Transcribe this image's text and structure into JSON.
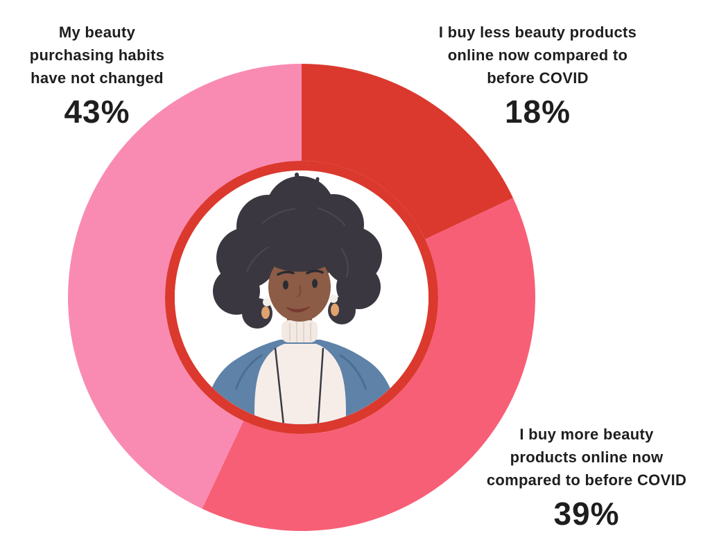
{
  "page": {
    "background": "#FFFFFF",
    "text_color": "#1E1E1E"
  },
  "chart_data": {
    "type": "pie",
    "subtype": "donut",
    "title": "",
    "unit": "%",
    "direction": "clockwise",
    "start_angle_deg": 0,
    "legend": "none",
    "segments": [
      {
        "label": "I buy less beauty products online now compared to before COVID",
        "label_lines": [
          "I buy less beauty products",
          "online now compared to",
          "before COVID"
        ],
        "value": 18,
        "value_label": "18%",
        "color": "#DB392E"
      },
      {
        "label": "I buy more beauty products online now compared to before COVID",
        "label_lines": [
          "I buy more beauty",
          "products online now",
          "compared to before COVID"
        ],
        "value": 39,
        "value_label": "39%",
        "color": "#F75F76"
      },
      {
        "label": "My beauty purchasing habits have not changed",
        "label_lines": [
          "My beauty",
          "purchasing habits",
          "have not changed"
        ],
        "value": 43,
        "value_label": "43%",
        "color": "#F98BB3"
      }
    ],
    "center": {
      "ring_color": "#DB392E",
      "fill": "#FFFFFF",
      "image_alt": "Illustration of a woman with dark curly afro hair, earrings, white turtleneck sweater and blue cardigan"
    }
  }
}
